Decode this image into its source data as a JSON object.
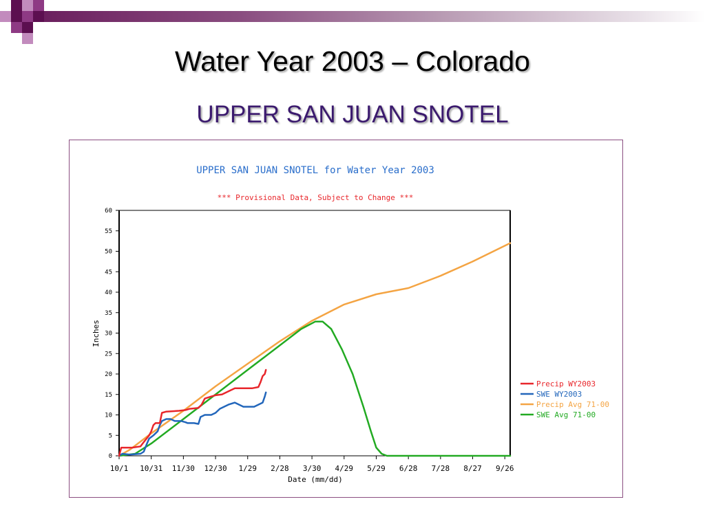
{
  "slide": {
    "title_main": "Water Year 2003",
    "title_rest": " – Colorado",
    "subtitle": "UPPER SAN JUAN SNOTEL"
  },
  "colors": {
    "precip_wy2003": "#e8262b",
    "swe_wy2003": "#2266bb",
    "precip_avg": "#f4a443",
    "swe_avg": "#22aa22",
    "chart_title": "#2a6ecb",
    "chart_subtitle": "#e8262b"
  },
  "chart_data": {
    "type": "line",
    "title": "UPPER SAN JUAN SNOTEL for Water Year 2003",
    "subtitle": "*** Provisional Data, Subject to Change ***",
    "xlabel": "Date (mm/dd)",
    "ylabel": "Inches",
    "x_ticks": [
      "10/1",
      "10/31",
      "11/30",
      "12/30",
      "1/29",
      "2/28",
      "3/30",
      "4/29",
      "5/29",
      "6/28",
      "7/28",
      "8/27",
      "9/26"
    ],
    "x_range_days": [
      0,
      365
    ],
    "ylim": [
      0,
      60
    ],
    "y_ticks": [
      0,
      5,
      10,
      15,
      20,
      25,
      30,
      35,
      40,
      45,
      50,
      55,
      60
    ],
    "grid": false,
    "legend_position": "right",
    "series": [
      {
        "name": "Precip WY2003",
        "color_key": "precip_wy2003",
        "points": [
          [
            0,
            0
          ],
          [
            2,
            2
          ],
          [
            12,
            2
          ],
          [
            20,
            2.3
          ],
          [
            22,
            3
          ],
          [
            28,
            5
          ],
          [
            30,
            6
          ],
          [
            32,
            7.5
          ],
          [
            34,
            8
          ],
          [
            38,
            8
          ],
          [
            40,
            10.5
          ],
          [
            44,
            10.8
          ],
          [
            56,
            11
          ],
          [
            62,
            11.2
          ],
          [
            66,
            11.5
          ],
          [
            74,
            11.7
          ],
          [
            77,
            12.5
          ],
          [
            80,
            14
          ],
          [
            86,
            14.5
          ],
          [
            90,
            14.8
          ],
          [
            96,
            15
          ],
          [
            100,
            15.5
          ],
          [
            104,
            16
          ],
          [
            108,
            16.5
          ],
          [
            116,
            16.5
          ],
          [
            124,
            16.5
          ],
          [
            130,
            16.8
          ],
          [
            132,
            18
          ],
          [
            134,
            19.5
          ],
          [
            136,
            20
          ],
          [
            137,
            21
          ]
        ]
      },
      {
        "name": "SWE WY2003",
        "color_key": "swe_wy2003",
        "points": [
          [
            0,
            0
          ],
          [
            3,
            0.5
          ],
          [
            10,
            0.3
          ],
          [
            20,
            0.5
          ],
          [
            23,
            1
          ],
          [
            26,
            3
          ],
          [
            28,
            4.2
          ],
          [
            32,
            5
          ],
          [
            34,
            5.5
          ],
          [
            36,
            6
          ],
          [
            38,
            7.5
          ],
          [
            40,
            8.5
          ],
          [
            44,
            9
          ],
          [
            48,
            9
          ],
          [
            52,
            8.5
          ],
          [
            54,
            8.5
          ],
          [
            58,
            8.5
          ],
          [
            62,
            8.2
          ],
          [
            64,
            8
          ],
          [
            66,
            8
          ],
          [
            70,
            8
          ],
          [
            74,
            7.8
          ],
          [
            76,
            9.5
          ],
          [
            80,
            10
          ],
          [
            86,
            10
          ],
          [
            90,
            10.5
          ],
          [
            94,
            11.5
          ],
          [
            98,
            12
          ],
          [
            102,
            12.5
          ],
          [
            108,
            13
          ],
          [
            112,
            12.5
          ],
          [
            116,
            12
          ],
          [
            120,
            12
          ],
          [
            126,
            12
          ],
          [
            130,
            12.5
          ],
          [
            134,
            13
          ],
          [
            136,
            14.5
          ],
          [
            137,
            15.5
          ]
        ]
      },
      {
        "name": "Precip Avg 71-00",
        "color_key": "precip_avg",
        "points": [
          [
            0,
            0
          ],
          [
            10,
            1.5
          ],
          [
            30,
            5.5
          ],
          [
            60,
            11
          ],
          [
            90,
            17
          ],
          [
            120,
            22.5
          ],
          [
            150,
            28
          ],
          [
            180,
            33
          ],
          [
            210,
            37
          ],
          [
            240,
            39.5
          ],
          [
            270,
            41
          ],
          [
            300,
            44
          ],
          [
            330,
            47.5
          ],
          [
            365,
            52
          ]
        ]
      },
      {
        "name": "SWE Avg 71-00",
        "color_key": "swe_avg",
        "points": [
          [
            0,
            0
          ],
          [
            15,
            0.5
          ],
          [
            30,
            3
          ],
          [
            60,
            9
          ],
          [
            90,
            15
          ],
          [
            120,
            21
          ],
          [
            150,
            27
          ],
          [
            170,
            31
          ],
          [
            183,
            32.8
          ],
          [
            190,
            32.8
          ],
          [
            198,
            31
          ],
          [
            208,
            26
          ],
          [
            218,
            20
          ],
          [
            228,
            12
          ],
          [
            235,
            6
          ],
          [
            240,
            2
          ],
          [
            245,
            0.5
          ],
          [
            250,
            0
          ],
          [
            300,
            0
          ],
          [
            365,
            0
          ]
        ]
      }
    ]
  }
}
